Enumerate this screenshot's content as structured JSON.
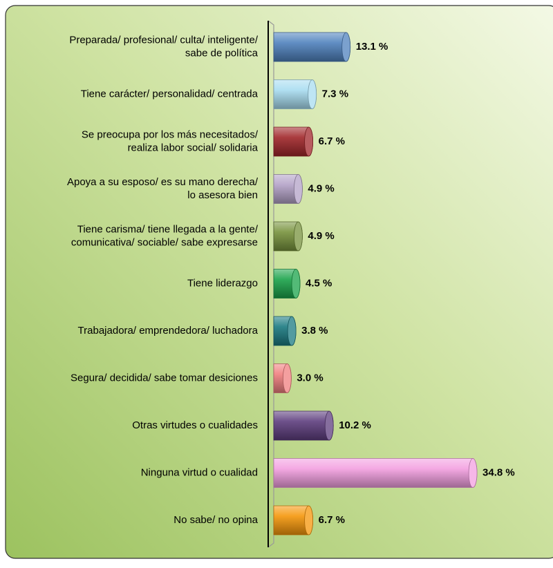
{
  "chart_data": {
    "type": "hbar",
    "categories": [
      "Preparada/ profesional/ culta/ inteligente/\nsabe de política",
      "Tiene carácter/ personalidad/ centrada",
      "Se preocupa por los más necesitados/\nrealiza labor social/ solidaria",
      "Apoya a su esposo/ es su mano derecha/\nlo asesora bien",
      "Tiene carisma/ tiene llegada a la gente/\ncomunicativa/ sociable/ sabe expresarse",
      "Tiene liderazgo",
      "Trabajadora/ emprendedora/ luchadora",
      "Segura/ decidida/ sabe tomar desiciones",
      "Otras virtudes o cualidades",
      "Ninguna virtud o cualidad",
      "No sabe/ no opina"
    ],
    "values": [
      13.1,
      7.3,
      6.7,
      4.9,
      4.9,
      4.5,
      3.8,
      3.0,
      10.2,
      34.8,
      6.7
    ],
    "value_labels": [
      "13.1 %",
      "7.3 %",
      "6.7 %",
      "4.9 %",
      "4.9 %",
      "4.5 %",
      "3.8 %",
      "3.0 %",
      "10.2 %",
      "34.8 %",
      "6.7 %"
    ],
    "colors": [
      "#4f81bd",
      "#a8dcf0",
      "#a0262a",
      "#b3a2c7",
      "#77923c",
      "#1aa34a",
      "#1a7a80",
      "#f07f7f",
      "#5e3e7e",
      "#f39fe0",
      "#f5960a"
    ]
  }
}
